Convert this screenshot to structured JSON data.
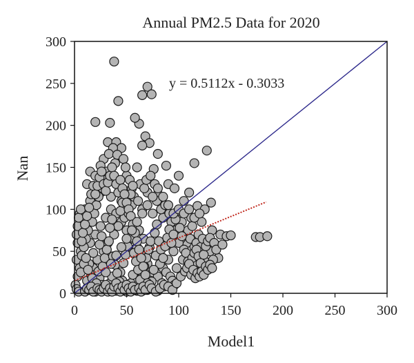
{
  "chart_data": {
    "type": "scatter",
    "title": "Annual PM2.5 Data for 2020",
    "xlabel": "Model1",
    "ylabel": "Nan",
    "xlim": [
      0,
      300
    ],
    "ylim": [
      0,
      300
    ],
    "xticks": [
      "0",
      "50",
      "100",
      "150",
      "200",
      "250",
      "300"
    ],
    "yticks": [
      "0",
      "50",
      "100",
      "150",
      "200",
      "250",
      "300"
    ],
    "grid": false,
    "equation": "y = 0.5112x - 0.3033",
    "one_to_one_line": {
      "x": [
        0,
        300
      ],
      "y": [
        0,
        300
      ],
      "color": "#2e2a8c"
    },
    "fit_line": {
      "slope": 0.5112,
      "intercept": -0.3033,
      "x_range": [
        0,
        184
      ],
      "color": "#c0271c",
      "note_visual_start_y": 15
    },
    "marker": {
      "fill": "#b4b4b4",
      "stroke": "#1a1a1a"
    },
    "points": [
      [
        38,
        276
      ],
      [
        70,
        246
      ],
      [
        74,
        237
      ],
      [
        65,
        236
      ],
      [
        42,
        229
      ],
      [
        20,
        204
      ],
      [
        34,
        203
      ],
      [
        62,
        202
      ],
      [
        58,
        209
      ],
      [
        32,
        180
      ],
      [
        40,
        180
      ],
      [
        45,
        173
      ],
      [
        37,
        173
      ],
      [
        68,
        187
      ],
      [
        72,
        179
      ],
      [
        65,
        176
      ],
      [
        80,
        166
      ],
      [
        76,
        148
      ],
      [
        88,
        152
      ],
      [
        28,
        160
      ],
      [
        25,
        152
      ],
      [
        33,
        166
      ],
      [
        15,
        145
      ],
      [
        12,
        130
      ],
      [
        20,
        140
      ],
      [
        50,
        140
      ],
      [
        55,
        125
      ],
      [
        60,
        150
      ],
      [
        63,
        130
      ],
      [
        70,
        120
      ],
      [
        80,
        118
      ],
      [
        90,
        130
      ],
      [
        96,
        125
      ],
      [
        100,
        140
      ],
      [
        110,
        120
      ],
      [
        115,
        155
      ],
      [
        127,
        170
      ],
      [
        105,
        110
      ],
      [
        118,
        104
      ],
      [
        131,
        108
      ],
      [
        125,
        100
      ],
      [
        112,
        90
      ],
      [
        122,
        85
      ],
      [
        132,
        75
      ],
      [
        140,
        70
      ],
      [
        146,
        68
      ],
      [
        150,
        69
      ],
      [
        174,
        67
      ],
      [
        178,
        67
      ],
      [
        185,
        68
      ],
      [
        130,
        50
      ],
      [
        138,
        42
      ],
      [
        125,
        38
      ],
      [
        120,
        30
      ],
      [
        133,
        40
      ],
      [
        108,
        60
      ],
      [
        115,
        55
      ],
      [
        102,
        65
      ],
      [
        95,
        80
      ],
      [
        85,
        90
      ],
      [
        75,
        95
      ],
      [
        65,
        100
      ],
      [
        55,
        105
      ],
      [
        45,
        110
      ],
      [
        35,
        115
      ],
      [
        25,
        120
      ],
      [
        15,
        110
      ],
      [
        10,
        100
      ],
      [
        5,
        95
      ],
      [
        8,
        80
      ],
      [
        4,
        70
      ],
      [
        3,
        60
      ],
      [
        6,
        50
      ],
      [
        2,
        40
      ],
      [
        5,
        30
      ],
      [
        3,
        20
      ],
      [
        1,
        10
      ],
      [
        2,
        5
      ],
      [
        4,
        2
      ],
      [
        10,
        3
      ],
      [
        20,
        2
      ],
      [
        30,
        4
      ],
      [
        40,
        3
      ],
      [
        50,
        2
      ],
      [
        60,
        3
      ],
      [
        70,
        4
      ],
      [
        80,
        3
      ],
      [
        15,
        60
      ],
      [
        20,
        70
      ],
      [
        25,
        80
      ],
      [
        30,
        90
      ],
      [
        35,
        100
      ],
      [
        40,
        95
      ],
      [
        45,
        85
      ],
      [
        50,
        75
      ],
      [
        55,
        65
      ],
      [
        60,
        55
      ],
      [
        65,
        45
      ],
      [
        70,
        35
      ],
      [
        75,
        25
      ],
      [
        80,
        20
      ],
      [
        85,
        30
      ],
      [
        90,
        40
      ],
      [
        95,
        50
      ],
      [
        100,
        60
      ],
      [
        18,
        30
      ],
      [
        22,
        40
      ],
      [
        28,
        50
      ],
      [
        32,
        60
      ],
      [
        38,
        70
      ],
      [
        42,
        80
      ],
      [
        48,
        90
      ],
      [
        52,
        95
      ],
      [
        58,
        85
      ],
      [
        62,
        75
      ],
      [
        66,
        65
      ],
      [
        72,
        55
      ],
      [
        78,
        45
      ],
      [
        82,
        35
      ],
      [
        88,
        25
      ],
      [
        92,
        20
      ],
      [
        98,
        30
      ],
      [
        104,
        40
      ],
      [
        110,
        45
      ],
      [
        116,
        35
      ],
      [
        12,
        15
      ],
      [
        16,
        22
      ],
      [
        24,
        18
      ],
      [
        26,
        10
      ],
      [
        34,
        12
      ],
      [
        36,
        20
      ],
      [
        44,
        25
      ],
      [
        46,
        15
      ],
      [
        54,
        12
      ],
      [
        56,
        22
      ],
      [
        64,
        18
      ],
      [
        68,
        10
      ],
      [
        74,
        14
      ],
      [
        76,
        28
      ],
      [
        84,
        12
      ],
      [
        86,
        8
      ],
      [
        94,
        15
      ],
      [
        96,
        10
      ],
      [
        7,
        45
      ],
      [
        9,
        55
      ],
      [
        11,
        65
      ],
      [
        13,
        75
      ],
      [
        17,
        85
      ],
      [
        19,
        95
      ],
      [
        21,
        105
      ],
      [
        23,
        115
      ],
      [
        27,
        125
      ],
      [
        29,
        135
      ],
      [
        31,
        145
      ],
      [
        39,
        155
      ],
      [
        41,
        165
      ],
      [
        47,
        160
      ],
      [
        49,
        150
      ],
      [
        53,
        135
      ],
      [
        57,
        115
      ],
      [
        61,
        110
      ],
      [
        67,
        125
      ],
      [
        69,
        135
      ],
      [
        73,
        140
      ],
      [
        77,
        130
      ],
      [
        79,
        110
      ],
      [
        83,
        100
      ],
      [
        87,
        105
      ],
      [
        91,
        95
      ],
      [
        93,
        85
      ],
      [
        97,
        75
      ],
      [
        101,
        90
      ],
      [
        103,
        85
      ],
      [
        107,
        70
      ],
      [
        109,
        75
      ],
      [
        111,
        65
      ],
      [
        113,
        80
      ],
      [
        117,
        60
      ],
      [
        119,
        70
      ],
      [
        121,
        55
      ],
      [
        123,
        65
      ],
      [
        14,
        35
      ],
      [
        18,
        48
      ],
      [
        24,
        58
      ],
      [
        26,
        68
      ],
      [
        34,
        78
      ],
      [
        36,
        88
      ],
      [
        44,
        98
      ],
      [
        46,
        108
      ],
      [
        54,
        118
      ],
      [
        56,
        128
      ],
      [
        6,
        25
      ],
      [
        9,
        35
      ],
      [
        11,
        42
      ],
      [
        13,
        28
      ],
      [
        17,
        18
      ],
      [
        19,
        8
      ],
      [
        21,
        12
      ],
      [
        23,
        26
      ],
      [
        27,
        32
      ],
      [
        29,
        42
      ],
      [
        31,
        52
      ],
      [
        33,
        62
      ],
      [
        37,
        44
      ],
      [
        39,
        34
      ],
      [
        41,
        24
      ],
      [
        43,
        14
      ],
      [
        47,
        36
      ],
      [
        49,
        46
      ],
      [
        51,
        56
      ],
      [
        53,
        66
      ],
      [
        57,
        48
      ],
      [
        59,
        38
      ],
      [
        61,
        28
      ],
      [
        63,
        16
      ],
      [
        67,
        32
      ],
      [
        69,
        42
      ],
      [
        71,
        52
      ],
      [
        73,
        62
      ],
      [
        77,
        72
      ],
      [
        79,
        82
      ],
      [
        81,
        62
      ],
      [
        83,
        52
      ],
      [
        85,
        42
      ],
      [
        87,
        56
      ],
      [
        89,
        66
      ],
      [
        91,
        76
      ],
      [
        93,
        60
      ],
      [
        95,
        70
      ],
      [
        97,
        88
      ],
      [
        99,
        98
      ],
      [
        101,
        78
      ],
      [
        103,
        68
      ],
      [
        105,
        52
      ],
      [
        107,
        48
      ],
      [
        109,
        38
      ],
      [
        111,
        28
      ],
      [
        113,
        42
      ],
      [
        115,
        48
      ],
      [
        117,
        52
      ],
      [
        119,
        44
      ],
      [
        121,
        36
      ],
      [
        124,
        46
      ],
      [
        126,
        56
      ],
      [
        128,
        62
      ],
      [
        130,
        66
      ],
      [
        134,
        60
      ],
      [
        136,
        52
      ],
      [
        142,
        58
      ],
      [
        2,
        70
      ],
      [
        3,
        80
      ],
      [
        4,
        90
      ],
      [
        6,
        100
      ],
      [
        7,
        62
      ],
      [
        8,
        72
      ],
      [
        10,
        82
      ],
      [
        12,
        92
      ],
      [
        14,
        102
      ],
      [
        16,
        118
      ],
      [
        18,
        128
      ],
      [
        20,
        118
      ],
      [
        22,
        128
      ],
      [
        24,
        138
      ],
      [
        26,
        145
      ],
      [
        28,
        130
      ],
      [
        30,
        122
      ],
      [
        32,
        132
      ],
      [
        34,
        140
      ],
      [
        36,
        150
      ],
      [
        38,
        140
      ],
      [
        40,
        130
      ],
      [
        42,
        120
      ],
      [
        44,
        135
      ],
      [
        46,
        125
      ],
      [
        48,
        118
      ],
      [
        50,
        108
      ],
      [
        52,
        100
      ],
      [
        54,
        92
      ],
      [
        56,
        82
      ],
      [
        58,
        72
      ],
      [
        60,
        62
      ],
      [
        62,
        52
      ],
      [
        64,
        42
      ],
      [
        66,
        32
      ],
      [
        68,
        22
      ],
      [
        70,
        12
      ],
      [
        72,
        6
      ],
      [
        10,
        2
      ],
      [
        12,
        6
      ],
      [
        14,
        4
      ],
      [
        16,
        8
      ],
      [
        18,
        2
      ],
      [
        22,
        6
      ],
      [
        24,
        4
      ],
      [
        26,
        2
      ],
      [
        28,
        6
      ],
      [
        30,
        10
      ],
      [
        32,
        2
      ],
      [
        34,
        6
      ],
      [
        36,
        2
      ],
      [
        38,
        8
      ],
      [
        40,
        12
      ],
      [
        42,
        6
      ],
      [
        44,
        2
      ],
      [
        46,
        8
      ],
      [
        48,
        4
      ],
      [
        50,
        10
      ],
      [
        52,
        6
      ],
      [
        54,
        2
      ],
      [
        56,
        8
      ],
      [
        58,
        4
      ],
      [
        62,
        6
      ],
      [
        64,
        2
      ],
      [
        66,
        8
      ],
      [
        68,
        4
      ],
      [
        72,
        10
      ],
      [
        74,
        6
      ],
      [
        78,
        2
      ],
      [
        82,
        6
      ],
      [
        86,
        10
      ],
      [
        90,
        8
      ],
      [
        94,
        4
      ],
      [
        98,
        12
      ],
      [
        102,
        20
      ],
      [
        106,
        26
      ],
      [
        108,
        30
      ],
      [
        110,
        35
      ],
      [
        112,
        22
      ],
      [
        114,
        28
      ],
      [
        116,
        18
      ],
      [
        118,
        24
      ],
      [
        120,
        20
      ],
      [
        122,
        26
      ],
      [
        124,
        22
      ],
      [
        126,
        32
      ],
      [
        128,
        28
      ],
      [
        130,
        34
      ],
      [
        132,
        30
      ],
      [
        30,
        25
      ],
      [
        35,
        35
      ],
      [
        40,
        45
      ],
      [
        45,
        55
      ],
      [
        50,
        65
      ],
      [
        55,
        75
      ],
      [
        60,
        85
      ],
      [
        65,
        95
      ],
      [
        70,
        105
      ],
      [
        75,
        115
      ],
      [
        80,
        125
      ],
      [
        85,
        115
      ],
      [
        90,
        105
      ],
      [
        95,
        95
      ],
      [
        100,
        100
      ],
      [
        105,
        95
      ],
      [
        110,
        100
      ],
      [
        115,
        90
      ],
      [
        120,
        95
      ]
    ]
  }
}
